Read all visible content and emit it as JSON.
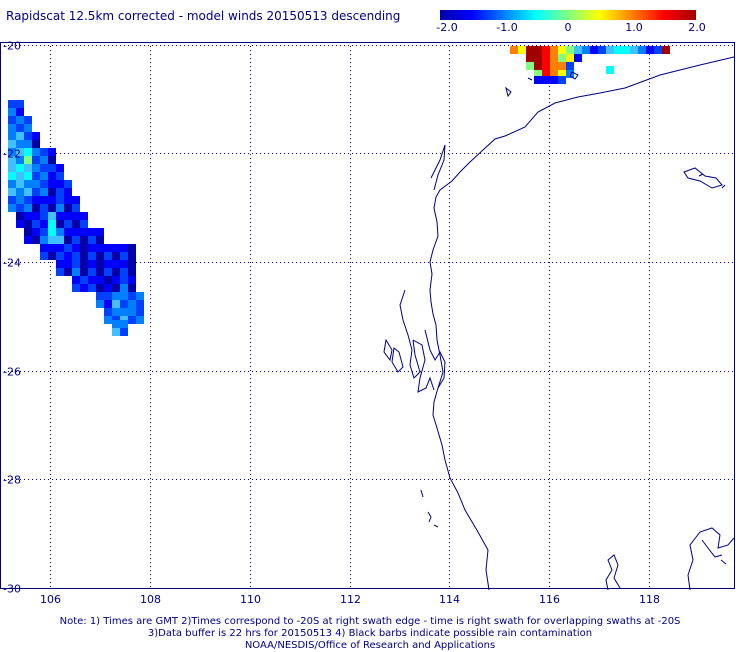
{
  "title": "Rapidscat 12.5km corrected - model winds 20150513 descending",
  "colorbar": {
    "labels": [
      "-2.0",
      "-1.0",
      "0",
      "1.0",
      "2.0"
    ],
    "values": [
      -2.0,
      -1.0,
      0,
      1.0,
      2.0
    ],
    "range": [
      -2.0,
      2.0
    ],
    "colors": [
      "#0000a8",
      "#0000ff",
      "#0080ff",
      "#00ffff",
      "#80ff80",
      "#ffff00",
      "#ff8000",
      "#ff0000",
      "#a00000"
    ]
  },
  "map": {
    "lon_labels": [
      "106",
      "108",
      "110",
      "112",
      "114",
      "116",
      "118"
    ],
    "lon_values": [
      106,
      108,
      110,
      112,
      114,
      116,
      118
    ],
    "lat_labels": [
      "-20",
      "-22",
      "-24",
      "-26",
      "-28",
      "-30"
    ],
    "lat_values": [
      -20,
      -22,
      -24,
      -26,
      -28,
      -30
    ],
    "lon_range": [
      105.0,
      119.7
    ],
    "lat_range": [
      -30.0,
      -19.95
    ],
    "grid": true,
    "colors": {
      "land": "#000080",
      "grid": "#000080",
      "text": "#000080"
    }
  },
  "notes": {
    "line1": "Note: 1) Times are GMT 2)Times correspond to -20S at right swath edge - time is right swath for overlapping swaths at -20S",
    "line2": "3)Data buffer is 22 hrs for 20150513 4) Black barbs indicate possible rain contamination",
    "line3": "NOAA/NESDIS/Office of Research and Applications"
  }
}
